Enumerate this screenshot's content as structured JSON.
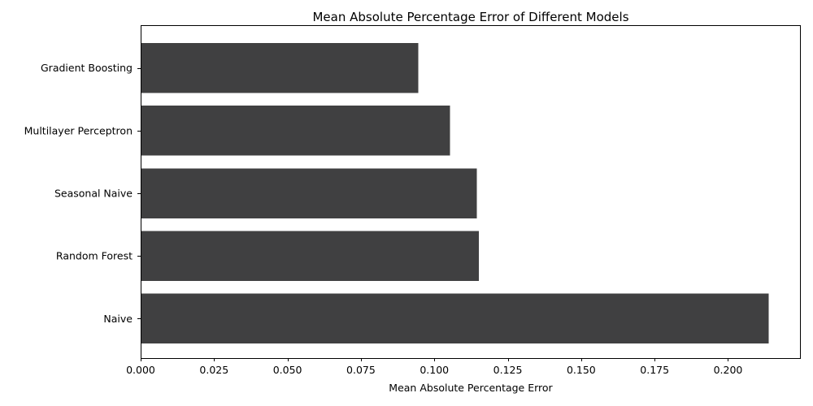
{
  "chart_data": {
    "type": "bar",
    "orientation": "horizontal",
    "title": "Mean Absolute Percentage Error of Different Models",
    "xlabel": "Mean Absolute Percentage Error",
    "ylabel": "",
    "categories": [
      "Naive",
      "Random Forest",
      "Seasonal Naive",
      "Multilayer Perceptron",
      "Gradient Boosting"
    ],
    "values": [
      0.2138,
      0.1152,
      0.1144,
      0.1053,
      0.0945
    ],
    "xlim": [
      0,
      0.2245
    ],
    "xticks": [
      0.0,
      0.025,
      0.05,
      0.075,
      0.1,
      0.125,
      0.15,
      0.175,
      0.2
    ],
    "xtick_labels": [
      "0.000",
      "0.025",
      "0.050",
      "0.075",
      "0.100",
      "0.125",
      "0.150",
      "0.175",
      "0.200"
    ],
    "bar_color": "#404041",
    "grid": false,
    "legend": "none"
  }
}
